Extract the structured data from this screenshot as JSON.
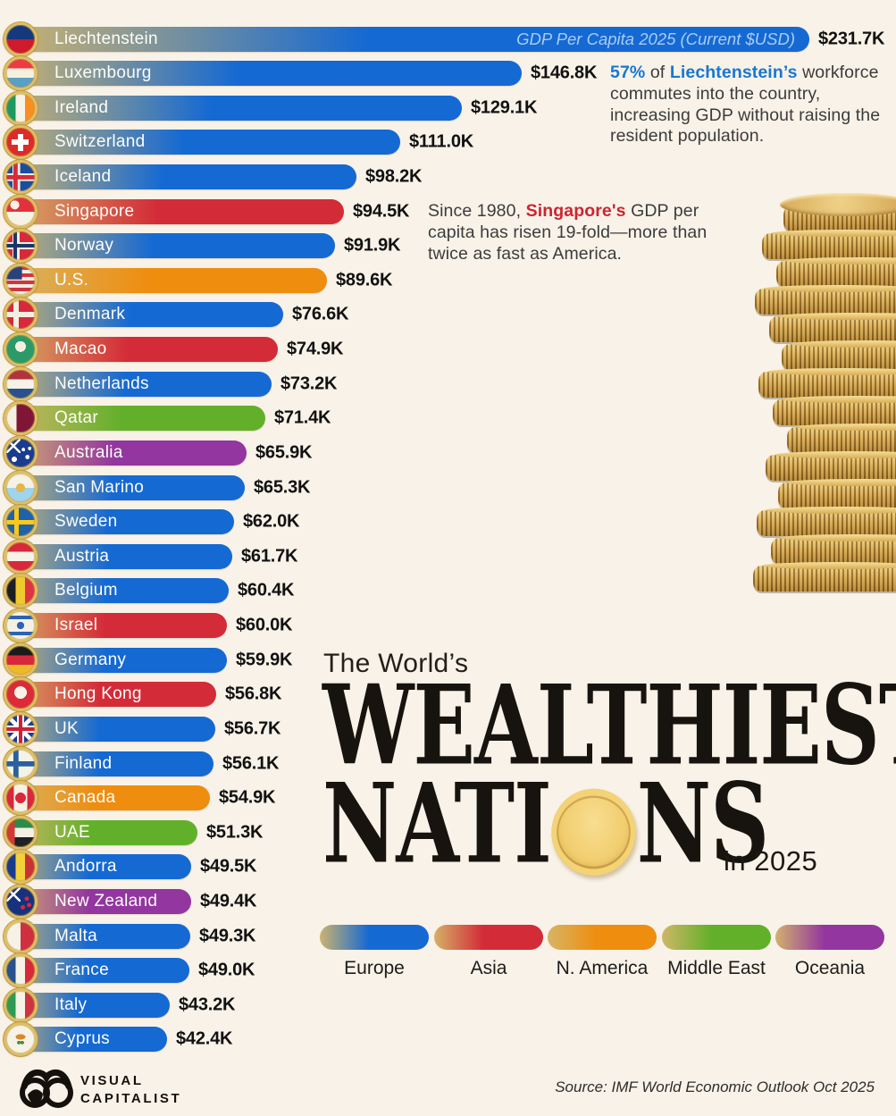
{
  "title": {
    "pre": "The World’s",
    "line1": "WEALTHIEST",
    "line2_left": "NATI",
    "line2_right": "NS",
    "year": "in 2025"
  },
  "colors": {
    "europe": "#1569d3",
    "asia": "#d42b38",
    "namerica": "#ef8d0e",
    "mideast": "#62b02a",
    "oceania": "#93369f",
    "gold": "#d5b76b",
    "accent_blue": "#1777d3",
    "accent_red": "#ce2430",
    "background": "#f8f2e8"
  },
  "chart_data": {
    "type": "bar",
    "orientation": "horizontal",
    "title": "The World’s Wealthiest Nations in 2025",
    "unit_label": "GDP Per Capita 2025 (Current $USD)",
    "unit": "thousand USD per capita",
    "xlim": [
      0,
      231.7
    ],
    "grid": false,
    "legend_position": "bottom-right",
    "rows": [
      {
        "name": "Liechtenstein",
        "value": 231.7,
        "label": "$231.7K",
        "region": "europe",
        "flag": "liechtenstein"
      },
      {
        "name": "Luxembourg",
        "value": 146.8,
        "label": "$146.8K",
        "region": "europe",
        "flag": "luxembourg"
      },
      {
        "name": "Ireland",
        "value": 129.1,
        "label": "$129.1K",
        "region": "europe",
        "flag": "ireland"
      },
      {
        "name": "Switzerland",
        "value": 111.0,
        "label": "$111.0K",
        "region": "europe",
        "flag": "switzerland"
      },
      {
        "name": "Iceland",
        "value": 98.2,
        "label": "$98.2K",
        "region": "europe",
        "flag": "iceland"
      },
      {
        "name": "Singapore",
        "value": 94.5,
        "label": "$94.5K",
        "region": "asia",
        "flag": "singapore"
      },
      {
        "name": "Norway",
        "value": 91.9,
        "label": "$91.9K",
        "region": "europe",
        "flag": "norway"
      },
      {
        "name": "U.S.",
        "value": 89.6,
        "label": "$89.6K",
        "region": "namerica",
        "flag": "us"
      },
      {
        "name": "Denmark",
        "value": 76.6,
        "label": "$76.6K",
        "region": "europe",
        "flag": "denmark"
      },
      {
        "name": "Macao",
        "value": 74.9,
        "label": "$74.9K",
        "region": "asia",
        "flag": "macao"
      },
      {
        "name": "Netherlands",
        "value": 73.2,
        "label": "$73.2K",
        "region": "europe",
        "flag": "netherlands"
      },
      {
        "name": "Qatar",
        "value": 71.4,
        "label": "$71.4K",
        "region": "mideast",
        "flag": "qatar"
      },
      {
        "name": "Australia",
        "value": 65.9,
        "label": "$65.9K",
        "region": "oceania",
        "flag": "australia"
      },
      {
        "name": "San Marino",
        "value": 65.3,
        "label": "$65.3K",
        "region": "europe",
        "flag": "sanmarino"
      },
      {
        "name": "Sweden",
        "value": 62.0,
        "label": "$62.0K",
        "region": "europe",
        "flag": "sweden"
      },
      {
        "name": "Austria",
        "value": 61.7,
        "label": "$61.7K",
        "region": "europe",
        "flag": "austria"
      },
      {
        "name": "Belgium",
        "value": 60.4,
        "label": "$60.4K",
        "region": "europe",
        "flag": "belgium"
      },
      {
        "name": "Israel",
        "value": 60.0,
        "label": "$60.0K",
        "region": "asia",
        "flag": "israel"
      },
      {
        "name": "Germany",
        "value": 59.9,
        "label": "$59.9K",
        "region": "europe",
        "flag": "germany"
      },
      {
        "name": "Hong Kong",
        "value": 56.8,
        "label": "$56.8K",
        "region": "asia",
        "flag": "hongkong"
      },
      {
        "name": "UK",
        "value": 56.7,
        "label": "$56.7K",
        "region": "europe",
        "flag": "uk"
      },
      {
        "name": "Finland",
        "value": 56.1,
        "label": "$56.1K",
        "region": "europe",
        "flag": "finland"
      },
      {
        "name": "Canada",
        "value": 54.9,
        "label": "$54.9K",
        "region": "namerica",
        "flag": "canada"
      },
      {
        "name": "UAE",
        "value": 51.3,
        "label": "$51.3K",
        "region": "mideast",
        "flag": "uae"
      },
      {
        "name": "Andorra",
        "value": 49.5,
        "label": "$49.5K",
        "region": "europe",
        "flag": "andorra"
      },
      {
        "name": "New Zealand",
        "value": 49.4,
        "label": "$49.4K",
        "region": "oceania",
        "flag": "newzealand"
      },
      {
        "name": "Malta",
        "value": 49.3,
        "label": "$49.3K",
        "region": "europe",
        "flag": "malta"
      },
      {
        "name": "France",
        "value": 49.0,
        "label": "$49.0K",
        "region": "europe",
        "flag": "france"
      },
      {
        "name": "Italy",
        "value": 43.2,
        "label": "$43.2K",
        "region": "europe",
        "flag": "italy"
      },
      {
        "name": "Cyprus",
        "value": 42.4,
        "label": "$42.4K",
        "region": "europe",
        "flag": "cyprus"
      }
    ],
    "legend": [
      {
        "label": "Europe",
        "region": "europe"
      },
      {
        "label": "Asia",
        "region": "asia"
      },
      {
        "label": "N. America",
        "region": "namerica"
      },
      {
        "label": "Middle East",
        "region": "mideast"
      },
      {
        "label": "Oceania",
        "region": "oceania"
      }
    ]
  },
  "annotation_liechtenstein": {
    "parts": [
      {
        "text": "57%",
        "accent": "blue"
      },
      {
        "text": " of "
      },
      {
        "text": "Liechtenstein’s",
        "accent": "blue"
      },
      {
        "text": " workforce commutes into the country, increasing GDP without raising the resident population."
      }
    ]
  },
  "annotation_singapore": {
    "parts": [
      {
        "text": "Since 1980, "
      },
      {
        "text": "Singapore's",
        "accent": "red"
      },
      {
        "text": " GDP per capita has risen 19-fold—more than twice as fast as America."
      }
    ]
  },
  "footer": {
    "brand_top": "VISUAL",
    "brand_bottom": "CAPITALIST",
    "source": "Source: IMF World Economic Outlook Oct 2025"
  }
}
